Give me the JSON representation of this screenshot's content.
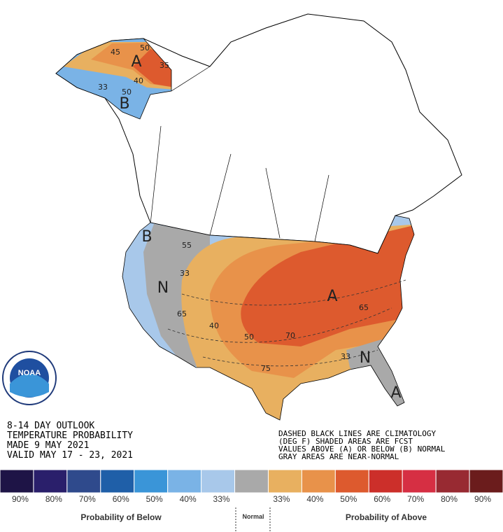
{
  "title_block": {
    "lines": [
      "8-14 DAY OUTLOOK",
      "TEMPERATURE PROBABILITY",
      "MADE  9 MAY 2021",
      "VALID  MAY 17 - 23, 2021"
    ]
  },
  "notes": {
    "lines": [
      "DASHED BLACK LINES ARE CLIMATOLOGY",
      "(DEG F) SHADED AREAS ARE FCST",
      "VALUES ABOVE (A) OR BELOW (B) NORMAL",
      "GRAY AREAS ARE NEAR-NORMAL"
    ]
  },
  "logo": {
    "text": "NOAA"
  },
  "map_labels": [
    "A",
    "B",
    "B",
    "N",
    "A",
    "N",
    "A",
    "33",
    "40",
    "50",
    "45",
    "35",
    "33",
    "40",
    "50",
    "33",
    "50",
    "55",
    "65",
    "70",
    "75",
    "65"
  ],
  "legend": {
    "colors": [
      "#1e1446",
      "#2a1f6b",
      "#2f4a8c",
      "#1f5fa8",
      "#3a95d8",
      "#7ab3e6",
      "#a8c8ea",
      "#a9a9a9",
      "#e8b060",
      "#e8924a",
      "#dd5a2e",
      "#cc2f2a",
      "#d62f43",
      "#982a32",
      "#6b1c1c"
    ],
    "labels": [
      "90%",
      "80%",
      "70%",
      "60%",
      "50%",
      "40%",
      "33%",
      "33%",
      "40%",
      "50%",
      "60%",
      "70%",
      "80%",
      "90%"
    ],
    "below_title": "Probability of Below",
    "normal_title": "Normal",
    "above_title": "Probability of Above"
  }
}
